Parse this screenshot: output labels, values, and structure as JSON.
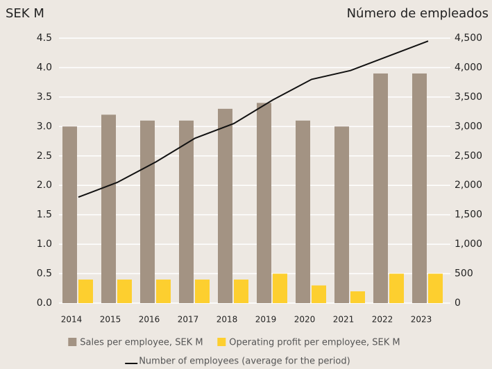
{
  "chart_data": {
    "type": "bar",
    "y_label": "SEK M",
    "y2_label": "Número de empleados",
    "categories": [
      "2014",
      "2015",
      "2016",
      "2017",
      "2018",
      "2019",
      "2020",
      "2021",
      "2022",
      "2023"
    ],
    "series": [
      {
        "name": "Sales per employee, SEK M",
        "color": "#a39383",
        "type": "bar",
        "values": [
          3.0,
          3.2,
          3.1,
          3.1,
          3.3,
          3.4,
          3.1,
          3.0,
          3.9,
          3.9
        ]
      },
      {
        "name": "Operating profit per employee, SEK M",
        "color": "#fdcf2f",
        "type": "bar",
        "values": [
          0.4,
          0.4,
          0.4,
          0.4,
          0.4,
          0.5,
          0.3,
          0.2,
          0.5,
          0.5
        ]
      },
      {
        "name": "Number of employees (average for the period)",
        "color": "#111111",
        "type": "line",
        "axis": "y2",
        "values": [
          1800,
          2050,
          2400,
          2800,
          3050,
          3450,
          3800,
          3950,
          4200,
          4450
        ]
      }
    ],
    "ylim": [
      0,
      4.5
    ],
    "yticks": [
      {
        "value": 0,
        "label": "0.0"
      },
      0.5,
      {
        "value": 1,
        "label": "1.0"
      },
      1.5,
      {
        "value": 2,
        "label": "2.0"
      },
      2.5,
      {
        "value": 3,
        "label": "3.0"
      },
      3.5,
      {
        "value": 4,
        "label": "4.0"
      },
      4.5
    ],
    "y2lim": [
      0,
      4500
    ],
    "y2ticks": [
      0,
      500,
      {
        "value": 1000,
        "label": "1,000"
      },
      {
        "value": 1500,
        "label": "1,500"
      },
      {
        "value": 2000,
        "label": "2,000"
      },
      {
        "value": 2500,
        "label": "2,500"
      },
      {
        "value": 3000,
        "label": "3,000"
      },
      {
        "value": 3500,
        "label": "3,500"
      },
      {
        "value": 4000,
        "label": "4,000"
      },
      {
        "value": 4500,
        "label": "4,500"
      }
    ],
    "grid": true
  }
}
